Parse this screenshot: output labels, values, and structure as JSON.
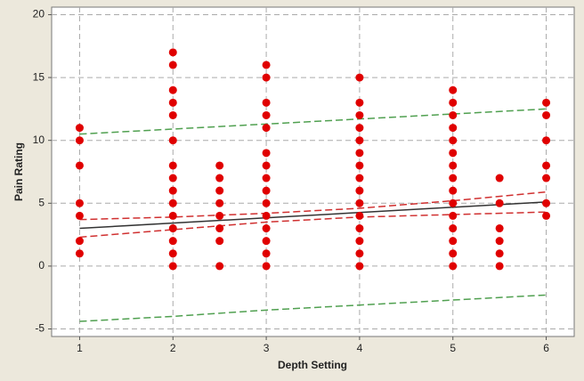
{
  "chart_data": {
    "type": "scatter",
    "xlabel": "Depth Setting",
    "ylabel": "Pain Rating",
    "xlim": [
      0.7,
      6.3
    ],
    "ylim": [
      -5.6,
      20.6
    ],
    "xticks": [
      1,
      2,
      3,
      4,
      5,
      6
    ],
    "yticks": [
      -5,
      0,
      5,
      10,
      15,
      20
    ],
    "grid": true,
    "series": [
      {
        "type": "scatter",
        "color": "#e00000",
        "x": [
          1,
          1,
          1,
          1,
          1,
          1,
          1,
          2,
          2,
          2,
          2,
          2,
          2,
          2,
          2,
          2,
          2,
          2,
          2,
          2,
          2,
          2,
          2.5,
          2.5,
          2.5,
          2.5,
          2.5,
          2.5,
          2.5,
          2.5,
          3,
          3,
          3,
          3,
          3,
          3,
          3,
          3,
          3,
          3,
          3,
          3,
          3,
          3,
          3,
          4,
          4,
          4,
          4,
          4,
          4,
          4,
          4,
          4,
          4,
          4,
          4,
          4,
          4,
          4,
          5,
          5,
          5,
          5,
          5,
          5,
          5,
          5,
          5,
          5,
          5,
          5,
          5,
          5,
          5,
          5.5,
          5.5,
          5.5,
          5.5,
          5.5,
          5.5,
          6,
          6,
          6,
          6,
          6,
          6,
          6
        ],
        "values": [
          11,
          10,
          8,
          5,
          4,
          2,
          1,
          17,
          16,
          14,
          13,
          12,
          10,
          8,
          7,
          6,
          5,
          4,
          3,
          2,
          1,
          0,
          8,
          7,
          6,
          5,
          4,
          3,
          2,
          0,
          16,
          15,
          13,
          12,
          11,
          9,
          8,
          7,
          6,
          5,
          4,
          3,
          2,
          1,
          0,
          15,
          13,
          12,
          11,
          10,
          9,
          8,
          7,
          6,
          5,
          4,
          3,
          2,
          1,
          0,
          14,
          13,
          12,
          11,
          10,
          9,
          8,
          7,
          6,
          5,
          4,
          3,
          2,
          1,
          0,
          7,
          5,
          3,
          2,
          1,
          0,
          13,
          12,
          10,
          8,
          7,
          5,
          4
        ]
      },
      {
        "type": "line",
        "color": "#333333",
        "style": "solid",
        "x": [
          1,
          6
        ],
        "values": [
          3.0,
          5.1
        ]
      },
      {
        "type": "line",
        "color": "#d03030",
        "style": "dashed",
        "x": [
          1,
          2,
          3,
          4,
          5,
          6
        ],
        "values": [
          3.7,
          3.9,
          4.2,
          4.6,
          5.2,
          5.9
        ]
      },
      {
        "type": "line",
        "color": "#d03030",
        "style": "dashed",
        "x": [
          1,
          2,
          3,
          4,
          5,
          6
        ],
        "values": [
          2.3,
          2.9,
          3.5,
          3.9,
          4.1,
          4.3
        ]
      },
      {
        "type": "line",
        "color": "#50a050",
        "style": "dashed",
        "x": [
          1,
          2,
          3,
          4,
          5,
          6
        ],
        "values": [
          10.5,
          10.9,
          11.3,
          11.7,
          12.1,
          12.5
        ]
      },
      {
        "type": "line",
        "color": "#50a050",
        "style": "dashed",
        "x": [
          1,
          2,
          3,
          4,
          5,
          6
        ],
        "values": [
          -4.4,
          -4.0,
          -3.5,
          -3.1,
          -2.7,
          -2.3
        ]
      }
    ]
  }
}
